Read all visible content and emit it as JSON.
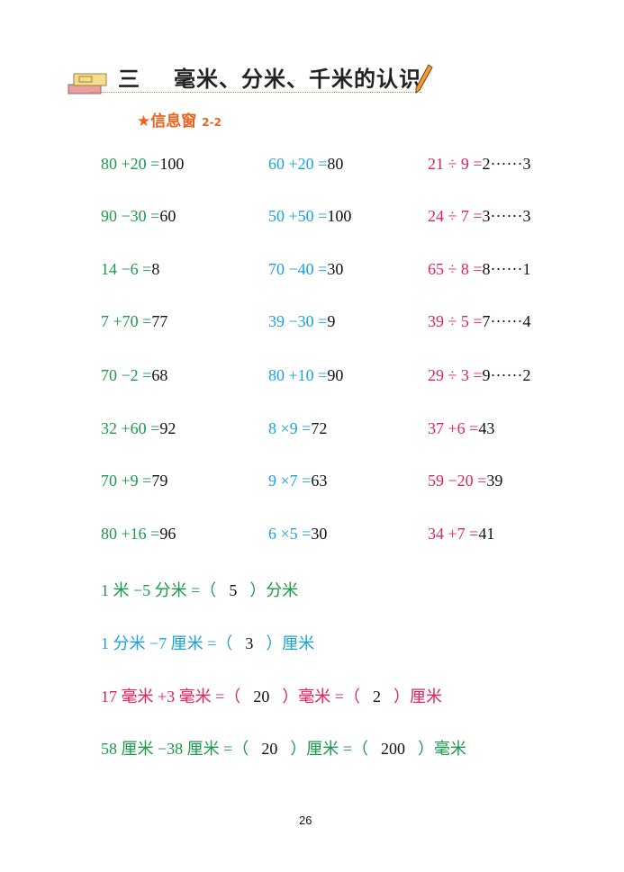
{
  "header": {
    "chapter": "三",
    "title": "毫米、分米、千米的认识",
    "subtitle": "信息窗",
    "subtitle_code": "2-2"
  },
  "colors": {
    "green": "#1a9a4a",
    "blue": "#1aa3e0",
    "pink": "#e2215e",
    "answer": "#111111",
    "accent": "#e8641e"
  },
  "columns": [
    [
      {
        "q": "80 +20 =",
        "a": "100"
      },
      {
        "q": "90 −30 =",
        "a": "60"
      },
      {
        "q": "14 −6 =",
        "a": "8"
      },
      {
        "q": "7 +70 =",
        "a": "77"
      },
      {
        "q": "70 −2 =",
        "a": "68"
      },
      {
        "q": "32 +60 =",
        "a": "92"
      },
      {
        "q": "70 +9 =",
        "a": "79"
      },
      {
        "q": "80 +16 =",
        "a": "96"
      }
    ],
    [
      {
        "q": "60 +20 =",
        "a": "80"
      },
      {
        "q": "50 +50 =",
        "a": "100"
      },
      {
        "q": "70 −40 =",
        "a": "30"
      },
      {
        "q": "39 −30 =",
        "a": "9"
      },
      {
        "q": "80 +10 =",
        "a": "90"
      },
      {
        "q": "8 ×9 =",
        "a": "72"
      },
      {
        "q": "9 ×7 =",
        "a": "63"
      },
      {
        "q": "6 ×5 =",
        "a": "30"
      }
    ],
    [
      {
        "q": "21 ÷ 9 =",
        "a": "2······3"
      },
      {
        "q": "24 ÷ 7 =",
        "a": "3······3"
      },
      {
        "q": "65 ÷ 8 =",
        "a": "8······1"
      },
      {
        "q": "39 ÷ 5 =",
        "a": "7······4"
      },
      {
        "q": "29 ÷ 3 =",
        "a": "9······2"
      },
      {
        "q": "37 +6 =",
        "a": "43"
      },
      {
        "q": "59 −20 =",
        "a": "39"
      },
      {
        "q": "34 +7 =",
        "a": "41"
      }
    ]
  ],
  "units": [
    {
      "color": "green",
      "parts": [
        "1 米 −5 分米 =（",
        "5",
        "）分米"
      ]
    },
    {
      "color": "blue",
      "parts": [
        "1 分米 −7 厘米 =（",
        "3",
        "）厘米"
      ]
    },
    {
      "color": "pink",
      "parts": [
        "17 毫米 +3 毫米 =（",
        "20",
        "）毫米 =（",
        "2",
        "）厘米"
      ]
    },
    {
      "color": "green",
      "parts": [
        "58 厘米 −38 厘米 =（",
        "20",
        "）厘米 =（",
        "200",
        "）毫米"
      ]
    }
  ],
  "page_number": "26"
}
